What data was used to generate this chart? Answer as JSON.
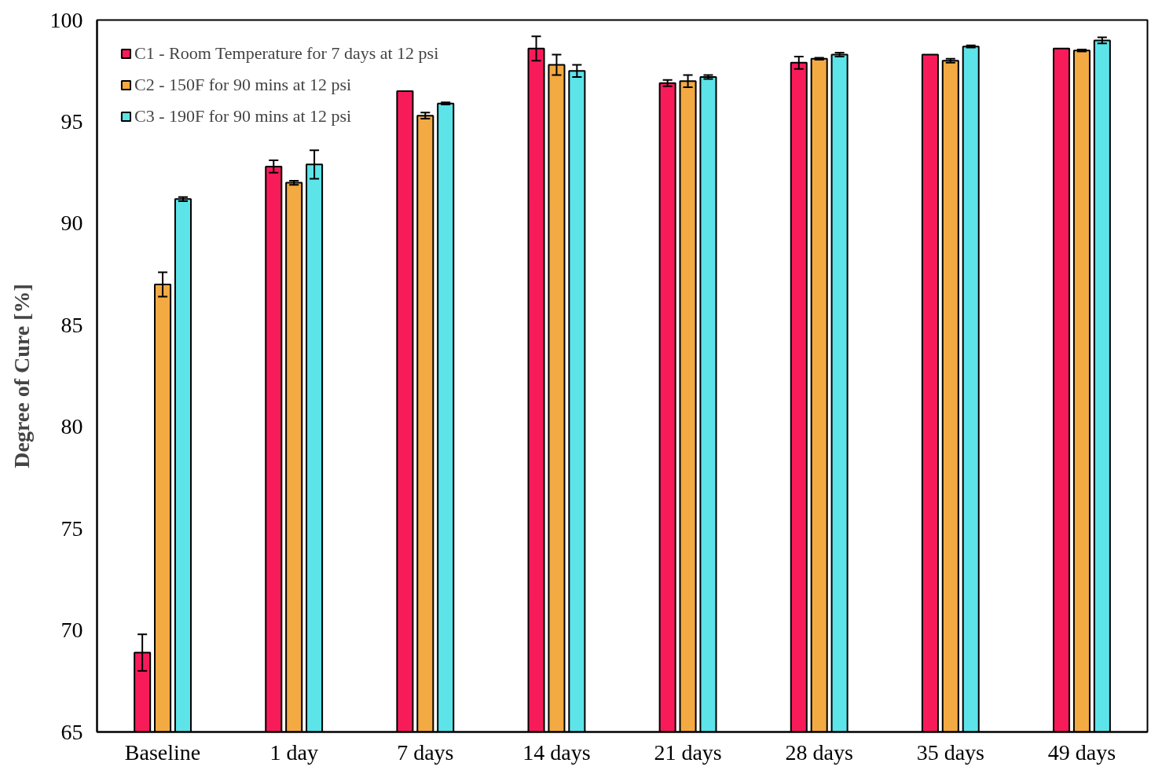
{
  "chart_data": {
    "type": "bar",
    "ylabel": "Degree of Cure [%]",
    "categories": [
      "Baseline",
      "1 day",
      "7 days",
      "14 days",
      "21 days",
      "28 days",
      "35 days",
      "49 days"
    ],
    "series": [
      {
        "name": "C1 - Room Temperature for 7 days at 12 psi",
        "color": "#f81b5a",
        "values": [
          68.9,
          92.8,
          96.5,
          98.6,
          96.9,
          97.9,
          98.3,
          98.6
        ],
        "errors": [
          0.9,
          0.3,
          null,
          0.6,
          0.15,
          0.3,
          null,
          null
        ]
      },
      {
        "name": "C2 - 150F for 90 mins at 12 psi",
        "color": "#f3aa42",
        "values": [
          87.0,
          92.0,
          95.3,
          97.8,
          97.0,
          98.1,
          98.0,
          98.5
        ],
        "errors": [
          0.6,
          0.1,
          0.15,
          0.5,
          0.3,
          0.05,
          0.1,
          0.05
        ]
      },
      {
        "name": "C3 - 190F for 90 mins at 12 psi",
        "color": "#5de4e9",
        "values": [
          91.2,
          92.9,
          95.9,
          97.5,
          97.2,
          98.3,
          98.7,
          99.0
        ],
        "errors": [
          0.1,
          0.7,
          0.05,
          0.3,
          0.1,
          0.1,
          0.05,
          0.15
        ]
      }
    ],
    "ylim": [
      65,
      100
    ],
    "yticks": [
      65,
      70,
      75,
      80,
      85,
      90,
      95,
      100
    ],
    "grid": false,
    "legend": "top left"
  }
}
